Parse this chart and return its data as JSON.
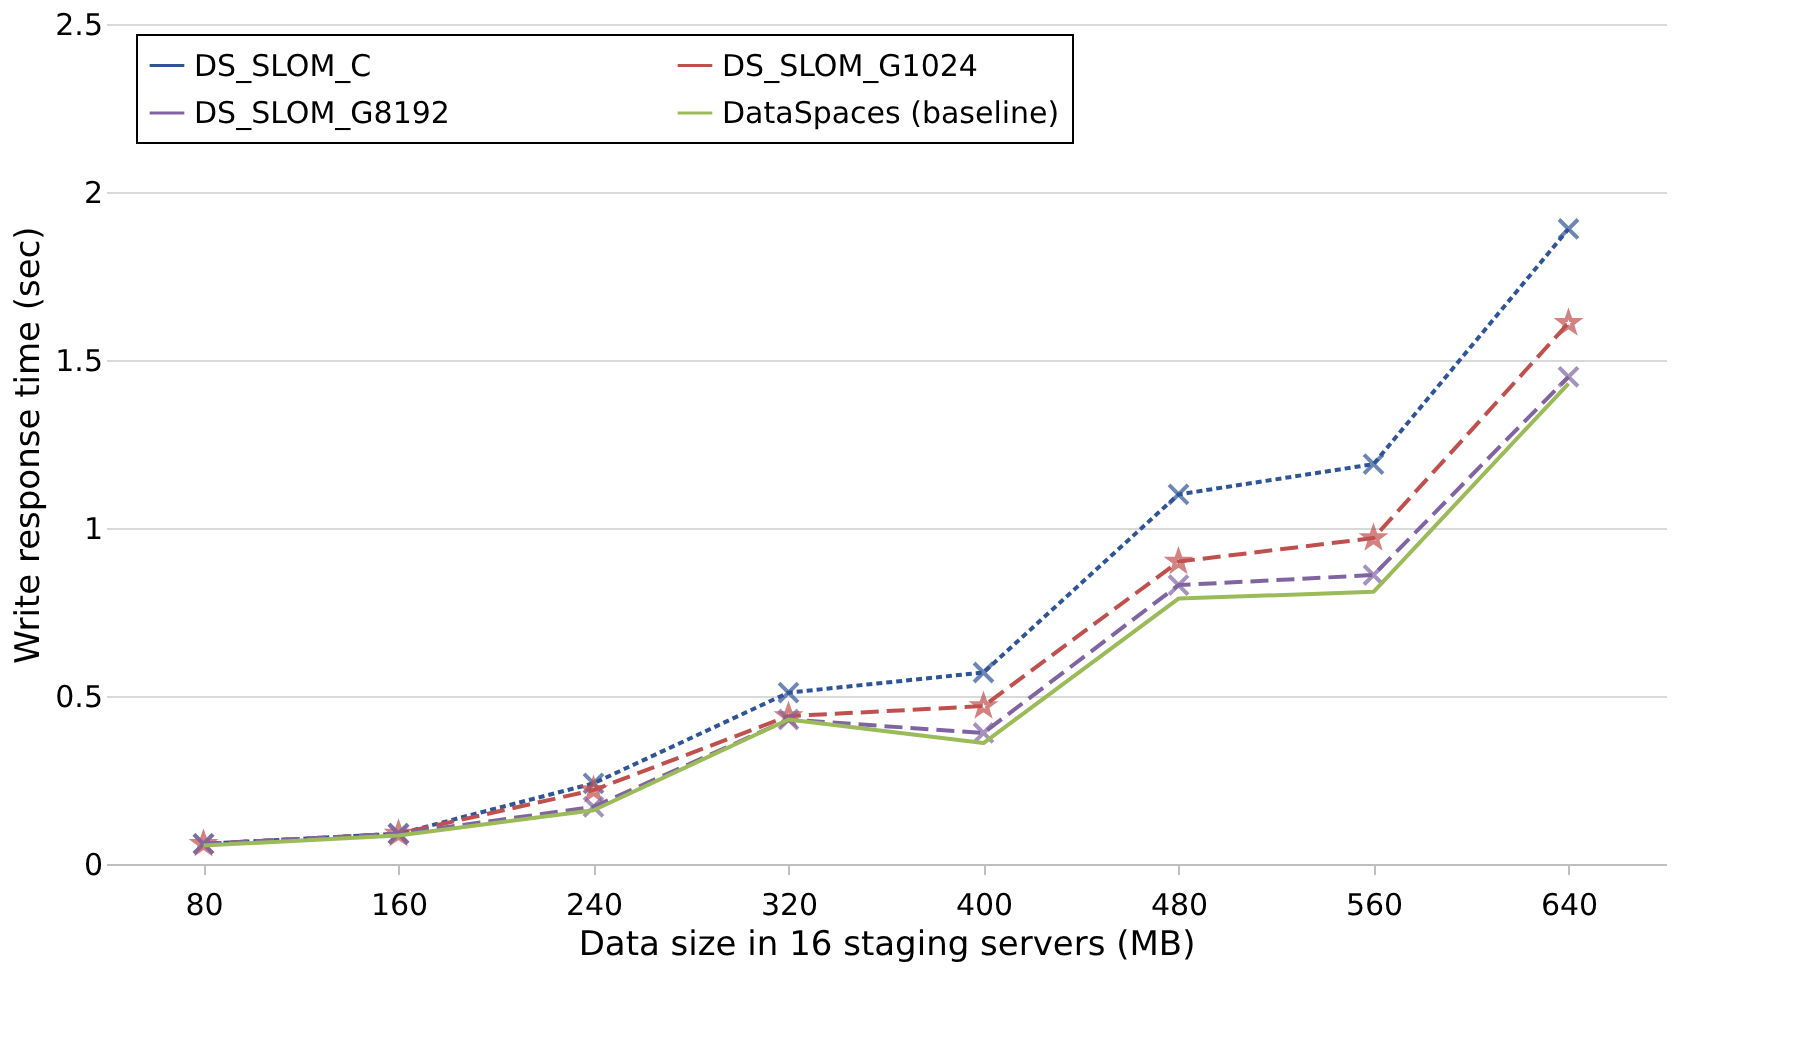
{
  "chart_data": {
    "type": "line",
    "xlabel": "Data size in 16 staging servers (MB)",
    "ylabel": "Write response time (sec)",
    "categories": [
      "80",
      "160",
      "240",
      "320",
      "400",
      "480",
      "560",
      "640"
    ],
    "series": [
      {
        "name": "DS_SLOM_C",
        "color": "#2f5597",
        "marker": "cross",
        "line_style": "dotted",
        "values": [
          0.06,
          0.09,
          0.24,
          0.51,
          0.57,
          1.1,
          1.19,
          1.89
        ]
      },
      {
        "name": "DS_SLOM_G1024",
        "color": "#c0504d",
        "marker": "star",
        "line_style": "dashed",
        "values": [
          0.06,
          0.09,
          0.22,
          0.44,
          0.47,
          0.9,
          0.97,
          1.61
        ]
      },
      {
        "name": "DS_SLOM_G8192",
        "color": "#8064a2",
        "marker": "cross",
        "line_style": "dashed",
        "values": [
          0.06,
          0.09,
          0.17,
          0.43,
          0.39,
          0.83,
          0.86,
          1.45
        ]
      },
      {
        "name": "DataSpaces (baseline)",
        "color": "#9bbb59",
        "marker": "none",
        "line_style": "solid",
        "values": [
          0.055,
          0.085,
          0.16,
          0.43,
          0.36,
          0.79,
          0.81,
          1.43
        ]
      }
    ],
    "ylim": [
      0,
      2.5
    ],
    "yticks": [
      0,
      0.5,
      1,
      1.5,
      2,
      2.5
    ],
    "grid": "y",
    "legend": "top"
  }
}
